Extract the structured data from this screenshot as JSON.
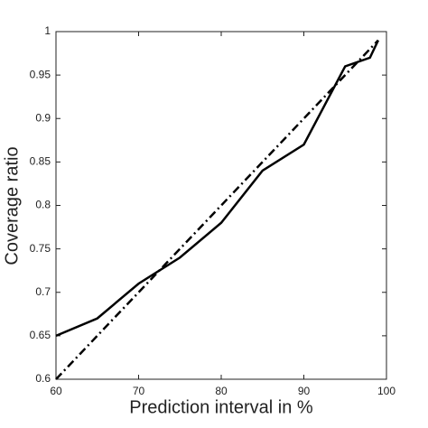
{
  "chart_data": {
    "type": "line",
    "xlabel": "Prediction interval in %",
    "ylabel": "Coverage ratio",
    "series": [
      {
        "color": "#000000",
        "linestyle": "solid",
        "x": [
          60,
          65,
          70,
          75,
          80,
          85,
          90,
          95,
          98,
          99
        ],
        "values": [
          0.65,
          0.67,
          0.71,
          0.74,
          0.78,
          0.84,
          0.87,
          0.96,
          0.97,
          0.99
        ]
      },
      {
        "color": "#000000",
        "linestyle": "dashdot",
        "x": [
          60,
          99
        ],
        "values": [
          0.6,
          0.99
        ]
      }
    ],
    "xlim": [
      60,
      100
    ],
    "xticks": [
      60,
      70,
      80,
      90,
      100
    ],
    "ylim": [
      0.6,
      1
    ],
    "yticks": [
      0.6,
      0.65,
      0.7,
      0.75,
      0.8,
      0.85,
      0.9,
      0.95,
      1
    ],
    "grid": false
  }
}
